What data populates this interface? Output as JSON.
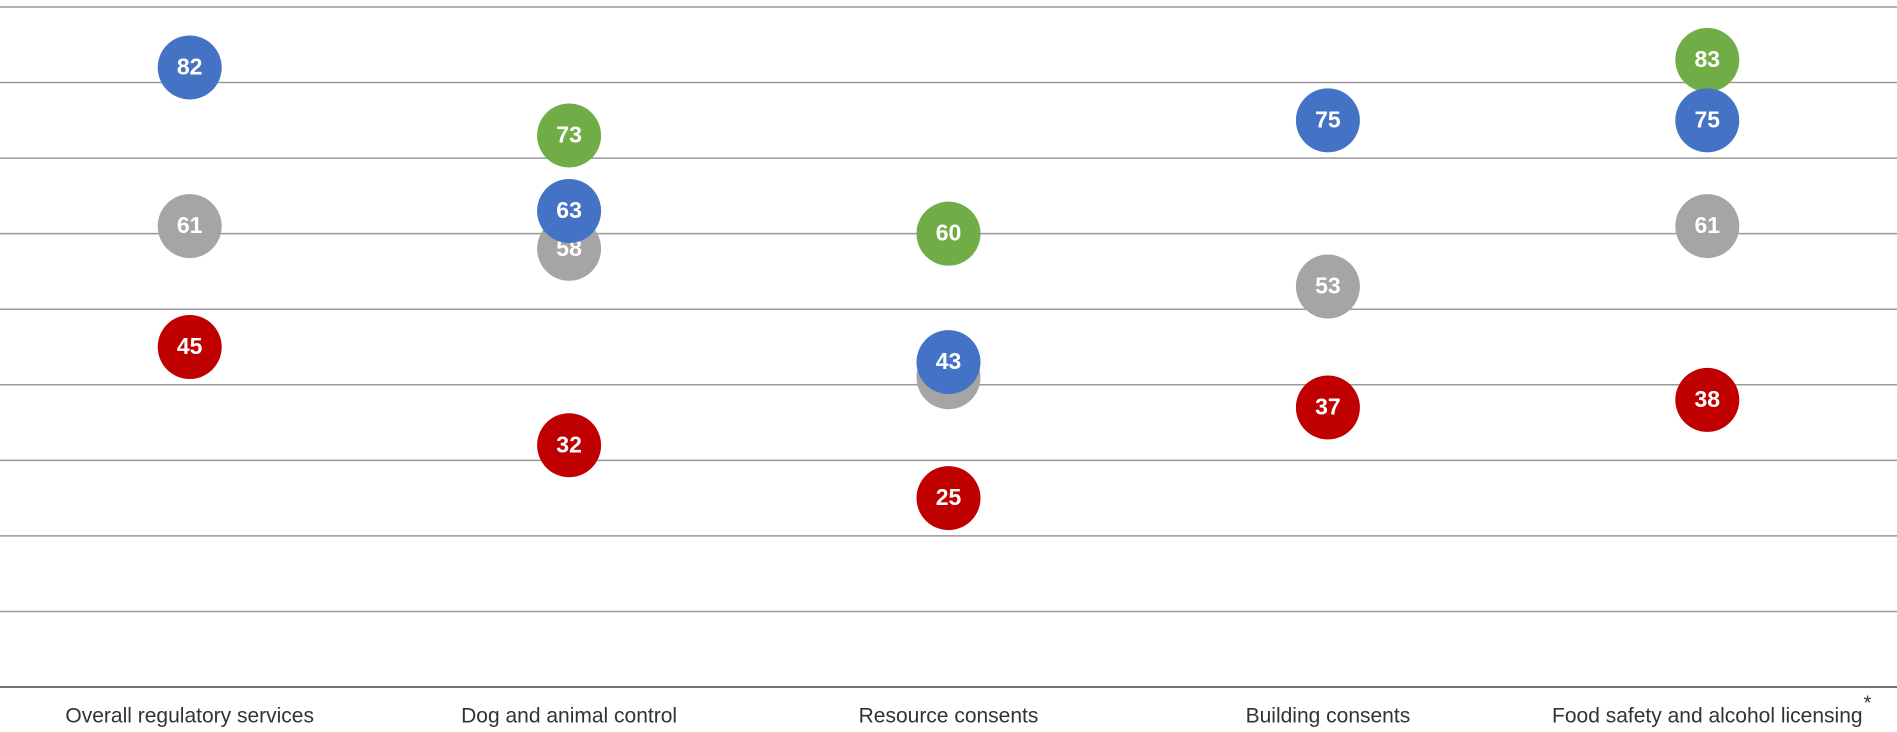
{
  "chart_data": {
    "type": "dot",
    "categories": [
      "Overall regulatory services",
      "Dog and animal control",
      "Resource consents",
      "Building consents",
      "Food safety and alcohol licensing"
    ],
    "annotations": [
      {
        "category": 4,
        "text": "*"
      }
    ],
    "series": [
      {
        "color": "#70ad47",
        "values": [
          null,
          73,
          60,
          null,
          83
        ]
      },
      {
        "color": "#a5a5a5",
        "values": [
          61,
          58,
          41,
          53,
          61
        ]
      },
      {
        "color": "#4472c4",
        "values": [
          82,
          63,
          43,
          75,
          75
        ]
      },
      {
        "color": "#c00000",
        "values": [
          45,
          32,
          25,
          37,
          38
        ]
      }
    ],
    "ylim": [
      0,
      90
    ],
    "yticks": [
      0,
      10,
      20,
      30,
      40,
      50,
      60,
      70,
      80,
      90
    ],
    "grid": true
  }
}
